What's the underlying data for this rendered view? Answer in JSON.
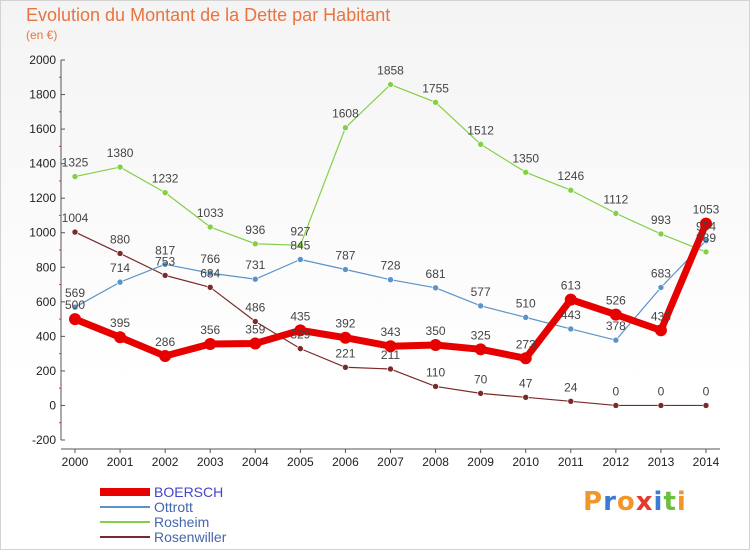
{
  "title": "Evolution du Montant de la Dette par Habitant",
  "subtitle": "(en €)",
  "logo": "Proxiti",
  "colors": {
    "title": "#e8743f",
    "BOERSCH": "#e60000",
    "Ottrott": "#5b93c9",
    "Rosheim": "#84cf46",
    "Rosenwiller": "#7b2a2a"
  },
  "chart_data": {
    "type": "line",
    "title": "Evolution du Montant de la Dette par Habitant",
    "ylabel": "(en €)",
    "xlabel": "",
    "x": [
      "2000",
      "2001",
      "2002",
      "2003",
      "2004",
      "2005",
      "2006",
      "2007",
      "2008",
      "2009",
      "2010",
      "2011",
      "2012",
      "2013",
      "2014"
    ],
    "ylim": [
      -200,
      2000
    ],
    "yticks": [
      -200,
      0,
      200,
      400,
      600,
      800,
      1000,
      1200,
      1400,
      1600,
      1800,
      2000
    ],
    "grid": false,
    "legend_position": "bottom-left",
    "series": [
      {
        "name": "BOERSCH",
        "values": [
          500,
          395,
          286,
          356,
          359,
          435,
          392,
          343,
          350,
          325,
          273,
          613,
          526,
          435,
          1053
        ]
      },
      {
        "name": "Ottrott",
        "values": [
          569,
          714,
          817,
          766,
          731,
          845,
          787,
          728,
          681,
          577,
          510,
          443,
          378,
          683,
          954
        ]
      },
      {
        "name": "Rosheim",
        "values": [
          1325,
          1380,
          1232,
          1033,
          936,
          927,
          1608,
          1858,
          1755,
          1512,
          1350,
          1246,
          1112,
          993,
          889
        ]
      },
      {
        "name": "Rosenwiller",
        "values": [
          1004,
          880,
          753,
          684,
          486,
          329,
          221,
          211,
          110,
          70,
          47,
          24,
          0,
          0,
          0
        ]
      }
    ]
  }
}
